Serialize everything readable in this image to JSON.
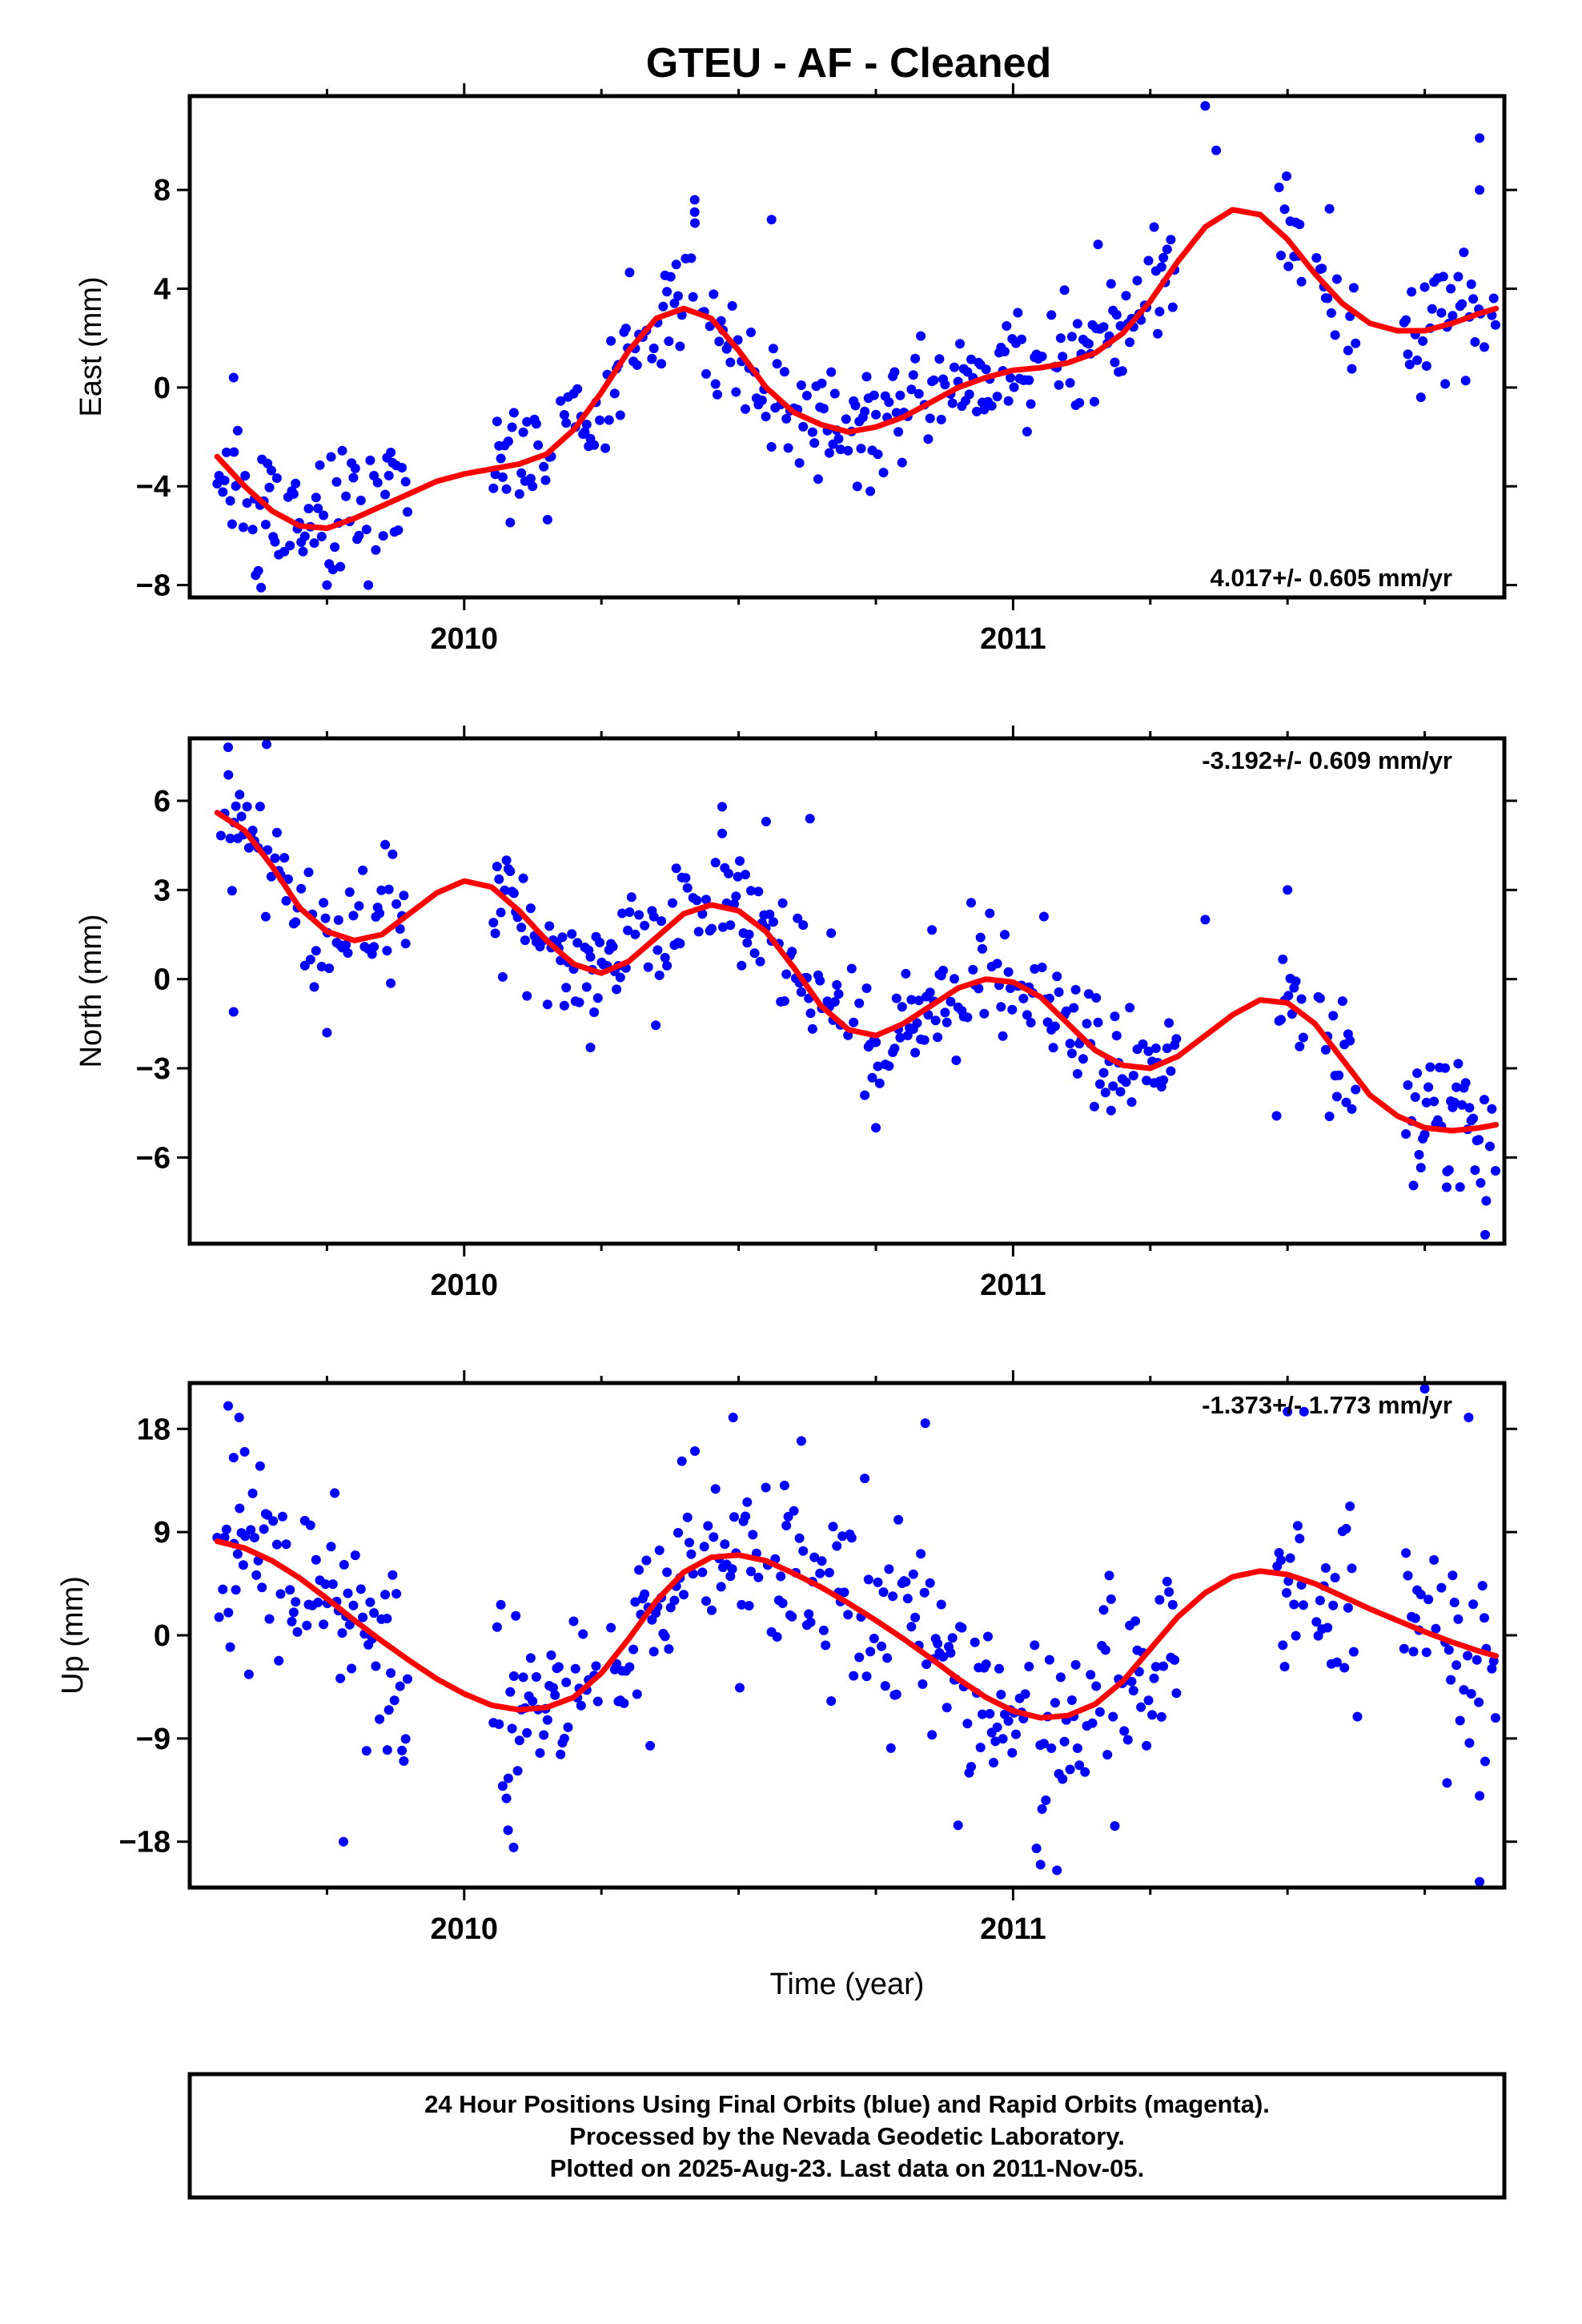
{
  "title": "GTEU  - AF - Cleaned",
  "colors": {
    "points": "#0000ff",
    "fit": "#ff0000",
    "frame": "#000000"
  },
  "xlabel": "Time (year)",
  "footer": {
    "line1": "24 Hour Positions Using Final Orbits (blue) and Rapid Orbits (magenta).",
    "line2": "Processed by the Nevada Geodetic Laboratory.",
    "line3": "Plotted on 2025-Aug-23. Last data on 2011-Nov-05."
  },
  "chart_data": [
    {
      "type": "scatter",
      "panel": "east",
      "ylabel": "East (mm)",
      "xlim": [
        2009.5,
        2011.895
      ],
      "ylim": [
        -8.5,
        11.8
      ],
      "xticks": [
        2010,
        2011
      ],
      "xtick_labels": [
        "2010",
        "2011"
      ],
      "yticks": [
        -8,
        -4,
        0,
        4,
        8
      ],
      "ytick_labels": [
        "−8",
        "−4",
        "0",
        "4",
        "8"
      ],
      "rate_text": "4.017+/- 0.605 mm/yr",
      "fit_curve": {
        "x": [
          2009.55,
          2009.6,
          2009.65,
          2009.7,
          2009.75,
          2009.8,
          2009.85,
          2009.9,
          2009.95,
          2010.0,
          2010.05,
          2010.1,
          2010.15,
          2010.2,
          2010.25,
          2010.3,
          2010.35,
          2010.4,
          2010.45,
          2010.5,
          2010.55,
          2010.6,
          2010.65,
          2010.7,
          2010.75,
          2010.8,
          2010.85,
          2010.9,
          2010.95,
          2011.0,
          2011.05,
          2011.1,
          2011.15,
          2011.2,
          2011.25,
          2011.3,
          2011.35,
          2011.4,
          2011.45,
          2011.5,
          2011.55,
          2011.6,
          2011.65,
          2011.7,
          2011.75,
          2011.8,
          2011.85,
          2011.88
        ],
        "y": [
          -2.8,
          -4.0,
          -5.0,
          -5.6,
          -5.7,
          -5.3,
          -4.8,
          -4.3,
          -3.8,
          -3.5,
          -3.3,
          -3.1,
          -2.7,
          -1.7,
          -0.2,
          1.5,
          2.8,
          3.2,
          2.8,
          1.5,
          0.0,
          -1.0,
          -1.5,
          -1.8,
          -1.6,
          -1.2,
          -0.6,
          0.0,
          0.4,
          0.7,
          0.8,
          1.0,
          1.4,
          2.2,
          3.5,
          5.1,
          6.5,
          7.2,
          7.0,
          6.0,
          4.6,
          3.4,
          2.6,
          2.3,
          2.3,
          2.6,
          3.0,
          3.2
        ]
      },
      "outliers": [
        {
          "x": 2009.58,
          "y": 0.4
        },
        {
          "x": 2010.42,
          "y": 7.6
        },
        {
          "x": 2010.42,
          "y": 7.1
        },
        {
          "x": 2010.56,
          "y": 6.8
        },
        {
          "x": 2011.35,
          "y": 11.4
        },
        {
          "x": 2011.37,
          "y": 9.6
        },
        {
          "x": 2011.85,
          "y": 10.1
        },
        {
          "x": 2011.85,
          "y": 8.0
        },
        {
          "x": 2009.62,
          "y": -7.6
        },
        {
          "x": 2009.63,
          "y": -8.1
        },
        {
          "x": 2009.75,
          "y": -8.0
        }
      ],
      "scatter_sd": 1.25,
      "seed": 11
    },
    {
      "type": "scatter",
      "panel": "north",
      "ylabel": "North (mm)",
      "xlim": [
        2009.5,
        2011.895
      ],
      "ylim": [
        -8.9,
        8.1
      ],
      "xticks": [
        2010,
        2011
      ],
      "xtick_labels": [
        "2010",
        "2011"
      ],
      "yticks": [
        -6,
        -3,
        0,
        3,
        6
      ],
      "ytick_labels": [
        "−6",
        "−3",
        "0",
        "3",
        "6"
      ],
      "rate_text": "-3.192+/- 0.609 mm/yr",
      "fit_curve": {
        "x": [
          2009.55,
          2009.6,
          2009.65,
          2009.7,
          2009.75,
          2009.8,
          2009.85,
          2009.9,
          2009.95,
          2010.0,
          2010.05,
          2010.1,
          2010.15,
          2010.2,
          2010.25,
          2010.3,
          2010.35,
          2010.4,
          2010.45,
          2010.5,
          2010.55,
          2010.6,
          2010.65,
          2010.7,
          2010.75,
          2010.8,
          2010.85,
          2010.9,
          2010.95,
          2011.0,
          2011.05,
          2011.1,
          2011.15,
          2011.2,
          2011.25,
          2011.3,
          2011.35,
          2011.4,
          2011.45,
          2011.5,
          2011.55,
          2011.6,
          2011.65,
          2011.7,
          2011.75,
          2011.8,
          2011.85,
          2011.88
        ],
        "y": [
          5.6,
          5.0,
          3.8,
          2.4,
          1.6,
          1.3,
          1.5,
          2.2,
          2.9,
          3.3,
          3.1,
          2.3,
          1.3,
          0.5,
          0.2,
          0.6,
          1.4,
          2.2,
          2.5,
          2.3,
          1.6,
          0.4,
          -0.9,
          -1.7,
          -1.9,
          -1.5,
          -0.9,
          -0.3,
          0.0,
          -0.1,
          -0.6,
          -1.5,
          -2.4,
          -2.9,
          -3.0,
          -2.6,
          -1.9,
          -1.2,
          -0.7,
          -0.8,
          -1.5,
          -2.7,
          -3.9,
          -4.6,
          -5.0,
          -5.1,
          -5.0,
          -4.9
        ]
      },
      "outliers": [
        {
          "x": 2009.58,
          "y": -1.1
        },
        {
          "x": 2009.57,
          "y": 7.8
        },
        {
          "x": 2009.64,
          "y": 7.9
        },
        {
          "x": 2010.47,
          "y": 5.8
        },
        {
          "x": 2010.47,
          "y": 4.9
        },
        {
          "x": 2010.55,
          "y": 5.3
        },
        {
          "x": 2010.63,
          "y": 5.4
        },
        {
          "x": 2009.75,
          "y": -1.8
        },
        {
          "x": 2010.23,
          "y": -2.3
        },
        {
          "x": 2010.75,
          "y": -5.0
        },
        {
          "x": 2011.86,
          "y": -8.6
        },
        {
          "x": 2011.79,
          "y": -7.0
        },
        {
          "x": 2011.5,
          "y": 3.0
        },
        {
          "x": 2011.35,
          "y": 2.0
        },
        {
          "x": 2011.48,
          "y": -4.6
        }
      ],
      "scatter_sd": 1.0,
      "seed": 23
    },
    {
      "type": "scatter",
      "panel": "up",
      "ylabel": "Up (mm)",
      "xlim": [
        2009.5,
        2011.895
      ],
      "ylim": [
        -22.0,
        22.0
      ],
      "xticks": [
        2010,
        2011
      ],
      "xtick_labels": [
        "2010",
        "2011"
      ],
      "yticks": [
        -18,
        -9,
        0,
        9,
        18
      ],
      "ytick_labels": [
        "−18",
        "−9",
        "0",
        "9",
        "18"
      ],
      "rate_text": "-1.373+/- 1.773 mm/yr",
      "fit_curve": {
        "x": [
          2009.55,
          2009.6,
          2009.65,
          2009.7,
          2009.75,
          2009.8,
          2009.85,
          2009.9,
          2009.95,
          2010.0,
          2010.05,
          2010.1,
          2010.15,
          2010.2,
          2010.25,
          2010.3,
          2010.35,
          2010.4,
          2010.45,
          2010.5,
          2010.55,
          2010.6,
          2010.65,
          2010.7,
          2010.75,
          2010.8,
          2010.85,
          2010.9,
          2010.95,
          2011.0,
          2011.05,
          2011.1,
          2011.15,
          2011.2,
          2011.25,
          2011.3,
          2011.35,
          2011.4,
          2011.45,
          2011.5,
          2011.55,
          2011.6,
          2011.65,
          2011.7,
          2011.75,
          2011.8,
          2011.85,
          2011.88
        ],
        "y": [
          8.2,
          7.6,
          6.5,
          5.0,
          3.2,
          1.3,
          -0.5,
          -2.2,
          -3.8,
          -5.1,
          -6.1,
          -6.5,
          -6.3,
          -5.4,
          -3.3,
          -0.3,
          3.0,
          5.5,
          6.8,
          7.0,
          6.5,
          5.4,
          4.2,
          2.8,
          1.3,
          -0.3,
          -2.0,
          -3.8,
          -5.4,
          -6.6,
          -7.2,
          -7.0,
          -6.0,
          -4.0,
          -1.2,
          1.6,
          3.7,
          5.1,
          5.6,
          5.3,
          4.5,
          3.4,
          2.3,
          1.3,
          0.3,
          -0.6,
          -1.4,
          -1.8
        ]
      },
      "outliers": [
        {
          "x": 2009.57,
          "y": 20.0
        },
        {
          "x": 2009.59,
          "y": 19.0
        },
        {
          "x": 2009.6,
          "y": 16.0
        },
        {
          "x": 2009.58,
          "y": 15.5
        },
        {
          "x": 2009.78,
          "y": -18.0
        },
        {
          "x": 2009.86,
          "y": -10.0
        },
        {
          "x": 2010.08,
          "y": -17.0
        },
        {
          "x": 2010.09,
          "y": -18.5
        },
        {
          "x": 2010.49,
          "y": 19.0
        },
        {
          "x": 2010.84,
          "y": 18.5
        },
        {
          "x": 2010.92,
          "y": -12.0
        },
        {
          "x": 2011.05,
          "y": -20.0
        },
        {
          "x": 2011.08,
          "y": -20.5
        },
        {
          "x": 2011.5,
          "y": 19.5
        },
        {
          "x": 2011.53,
          "y": 19.5
        },
        {
          "x": 2011.75,
          "y": 21.5
        },
        {
          "x": 2011.83,
          "y": 19.0
        },
        {
          "x": 2011.85,
          "y": -21.5
        },
        {
          "x": 2011.86,
          "y": -11.0
        },
        {
          "x": 2011.85,
          "y": -14.0
        }
      ],
      "scatter_sd": 4.3,
      "seed": 37
    }
  ]
}
